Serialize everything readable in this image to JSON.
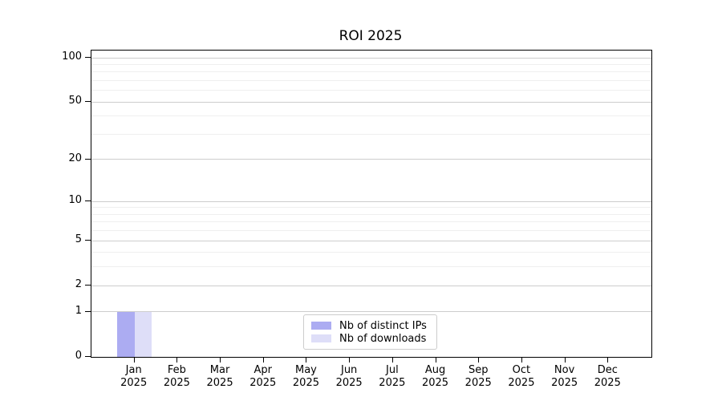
{
  "chart_data": {
    "type": "bar",
    "title": "ROI 2025",
    "months": [
      "Jan",
      "Feb",
      "Mar",
      "Apr",
      "May",
      "Jun",
      "Jul",
      "Aug",
      "Sep",
      "Oct",
      "Nov",
      "Dec"
    ],
    "year": "2025",
    "series": [
      {
        "name": "Nb of distinct IPs",
        "color": "#acacf2",
        "values": [
          1,
          0,
          0,
          0,
          0,
          0,
          0,
          0,
          0,
          0,
          0,
          0
        ]
      },
      {
        "name": "Nb of downloads",
        "color": "#dedef8",
        "values": [
          1,
          0,
          0,
          0,
          0,
          0,
          0,
          0,
          0,
          0,
          0,
          0
        ]
      }
    ],
    "y_scale": "log1p",
    "ylim": [
      0,
      112
    ],
    "y_major_ticks": [
      0,
      1,
      2,
      5,
      10,
      20,
      50,
      100
    ],
    "y_minor_gridlines": [
      3,
      4,
      6,
      7,
      8,
      9,
      30,
      40,
      60,
      70,
      80,
      90
    ],
    "grid": true,
    "legend_position": "lower center",
    "colors": {
      "background": "#ffffff",
      "spine": "#000000",
      "grid_major": "#cdcdcd",
      "grid_minor": "#efefef",
      "text": "#000000",
      "legend_border": "#cccccc"
    }
  }
}
